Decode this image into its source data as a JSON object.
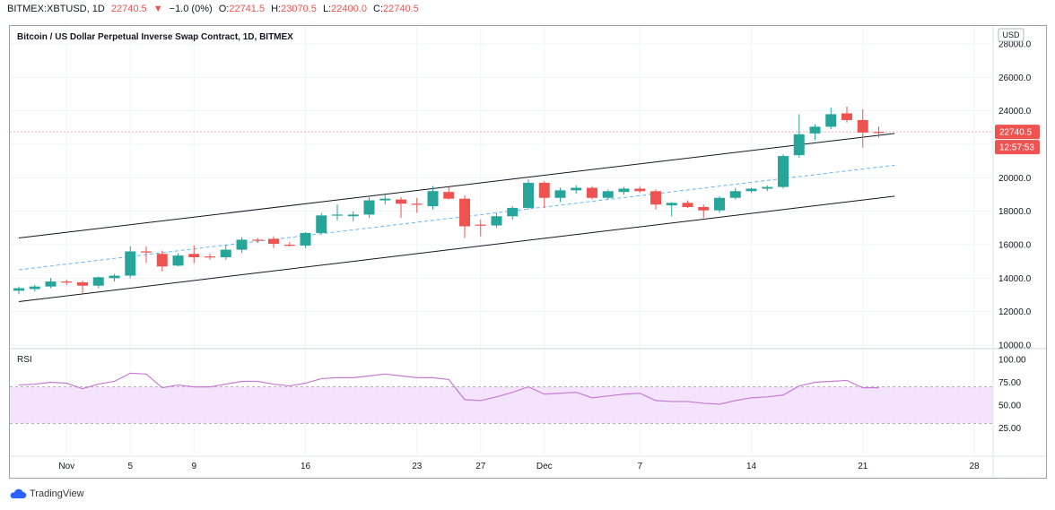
{
  "header": {
    "symbol": "BITMEX:XBTUSD, 1D",
    "last": "22740.5",
    "arrow": "▼",
    "change": "−1.0 (0%)",
    "o_label": "O:",
    "o": "22741.5",
    "h_label": "H:",
    "h": "23070.5",
    "l_label": "L:",
    "l": "22400.0",
    "c_label": "C:",
    "c": "22740.5"
  },
  "footer": {
    "brand": "TradingView"
  },
  "colors": {
    "up": "#26a69a",
    "down": "#ef5350",
    "channel": "#131722",
    "midline": "#64b5f6",
    "rsi": "#c67bd6",
    "rsi_band": "#f3e3fb"
  },
  "chart_data": [
    {
      "type": "candlestick",
      "title": "Bitcoin / US Dollar Perpetual Inverse Swap Contract, 1D, BITMEX",
      "currency": "USD",
      "ylim": [
        10000,
        28000
      ],
      "yticks": [
        "28000.0",
        "26000.0",
        "24000.0",
        "22000.0",
        "20000.0",
        "18000.0",
        "16000.0",
        "14000.0",
        "12000.0",
        "10000.0"
      ],
      "price_label": "22740.5",
      "countdown_label": "12:57:53",
      "current_price": 22740.5,
      "x_ticks": [
        {
          "label": "Nov",
          "day": 3
        },
        {
          "label": "5",
          "day": 7
        },
        {
          "label": "9",
          "day": 11
        },
        {
          "label": "16",
          "day": 18
        },
        {
          "label": "23",
          "day": 25
        },
        {
          "label": "27",
          "day": 29
        },
        {
          "label": "Dec",
          "day": 33
        },
        {
          "label": "7",
          "day": 39
        },
        {
          "label": "14",
          "day": 46
        },
        {
          "label": "21",
          "day": 53
        },
        {
          "label": "28",
          "day": 60
        }
      ],
      "candles": [
        {
          "day": 0,
          "o": 13250,
          "h": 13500,
          "l": 13050,
          "c": 13400
        },
        {
          "day": 1,
          "o": 13350,
          "h": 13600,
          "l": 13200,
          "c": 13500
        },
        {
          "day": 2,
          "o": 13500,
          "h": 14000,
          "l": 13400,
          "c": 13800
        },
        {
          "day": 3,
          "o": 13800,
          "h": 13900,
          "l": 13600,
          "c": 13750
        },
        {
          "day": 4,
          "o": 13750,
          "h": 13850,
          "l": 13100,
          "c": 13550
        },
        {
          "day": 5,
          "o": 13550,
          "h": 14100,
          "l": 13400,
          "c": 14050
        },
        {
          "day": 6,
          "o": 14000,
          "h": 14250,
          "l": 13800,
          "c": 14150
        },
        {
          "day": 7,
          "o": 14150,
          "h": 15900,
          "l": 14000,
          "c": 15600
        },
        {
          "day": 8,
          "o": 15600,
          "h": 15900,
          "l": 14900,
          "c": 15550
        },
        {
          "day": 9,
          "o": 15450,
          "h": 15650,
          "l": 14400,
          "c": 14700
        },
        {
          "day": 10,
          "o": 14750,
          "h": 15500,
          "l": 14700,
          "c": 15350
        },
        {
          "day": 11,
          "o": 15450,
          "h": 15950,
          "l": 14900,
          "c": 15250
        },
        {
          "day": 12,
          "o": 15300,
          "h": 15450,
          "l": 15100,
          "c": 15250
        },
        {
          "day": 13,
          "o": 15250,
          "h": 16000,
          "l": 15100,
          "c": 15700
        },
        {
          "day": 14,
          "o": 15700,
          "h": 16450,
          "l": 15500,
          "c": 16300
        },
        {
          "day": 15,
          "o": 16300,
          "h": 16400,
          "l": 16100,
          "c": 16250
        },
        {
          "day": 16,
          "o": 16350,
          "h": 16500,
          "l": 15800,
          "c": 16050
        },
        {
          "day": 17,
          "o": 16000,
          "h": 16150,
          "l": 15900,
          "c": 15950
        },
        {
          "day": 18,
          "o": 15950,
          "h": 16750,
          "l": 15800,
          "c": 16700
        },
        {
          "day": 19,
          "o": 16700,
          "h": 17900,
          "l": 16600,
          "c": 17750
        },
        {
          "day": 20,
          "o": 17750,
          "h": 18400,
          "l": 17450,
          "c": 17800
        },
        {
          "day": 21,
          "o": 17700,
          "h": 18000,
          "l": 17400,
          "c": 17800
        },
        {
          "day": 22,
          "o": 17800,
          "h": 18900,
          "l": 17600,
          "c": 18650
        },
        {
          "day": 23,
          "o": 18650,
          "h": 19000,
          "l": 18400,
          "c": 18750
        },
        {
          "day": 24,
          "o": 18700,
          "h": 18850,
          "l": 17600,
          "c": 18450
        },
        {
          "day": 25,
          "o": 18450,
          "h": 18800,
          "l": 17900,
          "c": 18400
        },
        {
          "day": 26,
          "o": 18300,
          "h": 19500,
          "l": 18100,
          "c": 19200
        },
        {
          "day": 27,
          "o": 19150,
          "h": 19450,
          "l": 18700,
          "c": 18750
        },
        {
          "day": 28,
          "o": 18750,
          "h": 18950,
          "l": 16400,
          "c": 17100
        },
        {
          "day": 29,
          "o": 17200,
          "h": 17500,
          "l": 16500,
          "c": 17150
        },
        {
          "day": 30,
          "o": 17150,
          "h": 17900,
          "l": 17000,
          "c": 17700
        },
        {
          "day": 31,
          "o": 17700,
          "h": 18300,
          "l": 17500,
          "c": 18200
        },
        {
          "day": 32,
          "o": 18200,
          "h": 19900,
          "l": 18100,
          "c": 19700
        },
        {
          "day": 33,
          "o": 19700,
          "h": 19800,
          "l": 18200,
          "c": 18800
        },
        {
          "day": 34,
          "o": 18800,
          "h": 19400,
          "l": 18550,
          "c": 19250
        },
        {
          "day": 35,
          "o": 19250,
          "h": 19550,
          "l": 19050,
          "c": 19400
        },
        {
          "day": 36,
          "o": 19400,
          "h": 19500,
          "l": 18700,
          "c": 18800
        },
        {
          "day": 37,
          "o": 18800,
          "h": 19300,
          "l": 18700,
          "c": 19200
        },
        {
          "day": 38,
          "o": 19150,
          "h": 19450,
          "l": 19000,
          "c": 19350
        },
        {
          "day": 39,
          "o": 19350,
          "h": 19500,
          "l": 19100,
          "c": 19200
        },
        {
          "day": 40,
          "o": 19200,
          "h": 19300,
          "l": 18100,
          "c": 18400
        },
        {
          "day": 41,
          "o": 18350,
          "h": 18550,
          "l": 17700,
          "c": 18500
        },
        {
          "day": 42,
          "o": 18500,
          "h": 18650,
          "l": 18200,
          "c": 18250
        },
        {
          "day": 43,
          "o": 18250,
          "h": 18400,
          "l": 17600,
          "c": 18050
        },
        {
          "day": 44,
          "o": 18050,
          "h": 18900,
          "l": 17900,
          "c": 18800
        },
        {
          "day": 45,
          "o": 18800,
          "h": 19400,
          "l": 18700,
          "c": 19200
        },
        {
          "day": 46,
          "o": 19200,
          "h": 19400,
          "l": 19100,
          "c": 19350
        },
        {
          "day": 47,
          "o": 19350,
          "h": 19550,
          "l": 19200,
          "c": 19450
        },
        {
          "day": 48,
          "o": 19450,
          "h": 21400,
          "l": 19350,
          "c": 21300
        },
        {
          "day": 49,
          "o": 21350,
          "h": 23800,
          "l": 21200,
          "c": 22600
        },
        {
          "day": 50,
          "o": 22650,
          "h": 23200,
          "l": 22250,
          "c": 23050
        },
        {
          "day": 51,
          "o": 23050,
          "h": 24200,
          "l": 22900,
          "c": 23800
        },
        {
          "day": 52,
          "o": 23850,
          "h": 24250,
          "l": 23300,
          "c": 23450
        },
        {
          "day": 53,
          "o": 23450,
          "h": 24100,
          "l": 21800,
          "c": 22700
        },
        {
          "day": 54,
          "o": 22741.5,
          "h": 23070.5,
          "l": 22400,
          "c": 22740.5
        }
      ],
      "channel": {
        "upper": [
          {
            "day": 0,
            "price": 16400
          },
          {
            "day": 55,
            "price": 22650
          }
        ],
        "middle": [
          {
            "day": 0,
            "price": 14500
          },
          {
            "day": 55,
            "price": 20750
          }
        ],
        "lower": [
          {
            "day": 0,
            "price": 12600
          },
          {
            "day": 55,
            "price": 18900
          }
        ]
      }
    },
    {
      "type": "line",
      "title": "RSI",
      "ylim": [
        0,
        100
      ],
      "yticks": [
        "100.00",
        "75.00",
        "50.00",
        "25.00"
      ],
      "band": [
        30,
        70
      ],
      "values": [
        72,
        73,
        75,
        74,
        68,
        73,
        76,
        85,
        84,
        69,
        72,
        70,
        70,
        73,
        76,
        76,
        73,
        71,
        74,
        79,
        80,
        80,
        82,
        84,
        82,
        80,
        80,
        78,
        56,
        55,
        59,
        64,
        70,
        62,
        63,
        64,
        58,
        60,
        62,
        63,
        55,
        54,
        54,
        52,
        51,
        55,
        58,
        59,
        61,
        71,
        75,
        76,
        77,
        69,
        69
      ]
    }
  ]
}
